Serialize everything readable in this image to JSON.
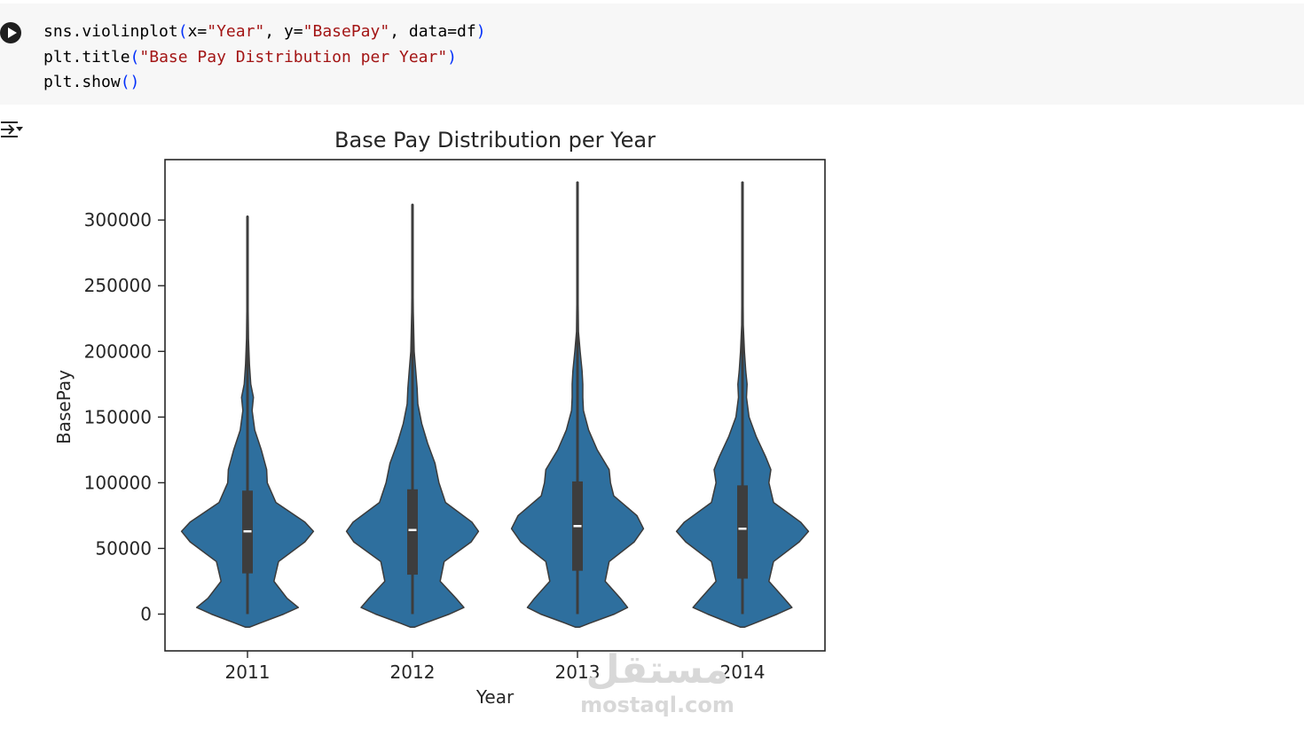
{
  "notebook": {
    "code_lines": [
      [
        {
          "t": "sns.violinplot",
          "c": ""
        },
        {
          "t": "(",
          "c": "p"
        },
        {
          "t": "x=",
          "c": ""
        },
        {
          "t": "\"Year\"",
          "c": "s"
        },
        {
          "t": ", y=",
          "c": ""
        },
        {
          "t": "\"BasePay\"",
          "c": "s"
        },
        {
          "t": ", data=df",
          "c": ""
        },
        {
          "t": ")",
          "c": "p"
        }
      ],
      [
        {
          "t": "plt.title",
          "c": ""
        },
        {
          "t": "(",
          "c": "p"
        },
        {
          "t": "\"Base Pay Distribution per Year\"",
          "c": "s"
        },
        {
          "t": ")",
          "c": "p"
        }
      ],
      [
        {
          "t": "plt.show",
          "c": ""
        },
        {
          "t": "()",
          "c": "p"
        }
      ]
    ],
    "run_icon": "play-circle-icon",
    "output_icon": "output-toggle-icon"
  },
  "chart_data": {
    "type": "violin",
    "title": "Base Pay Distribution per Year",
    "xlabel": "Year",
    "ylabel": "BasePay",
    "categories": [
      "2011",
      "2012",
      "2013",
      "2014"
    ],
    "ylim": [
      -28000,
      346000
    ],
    "yticks": [
      0,
      50000,
      100000,
      150000,
      200000,
      250000,
      300000
    ],
    "ytick_labels": [
      "0",
      "50000",
      "100000",
      "150000",
      "200000",
      "250000",
      "300000"
    ],
    "grid": false,
    "legend": "none",
    "colors": {
      "fill": "#2e6f9e",
      "edge": "#3b3b3b",
      "box": "#3d3d3d",
      "median": "#ffffff"
    },
    "violins": [
      {
        "year": "2011",
        "min": 0,
        "max": 303000,
        "q1": 31000,
        "median": 63000,
        "q3": 94000,
        "profile": [
          [
            -10000,
            0.03
          ],
          [
            -7000,
            0.18
          ],
          [
            0,
            0.55
          ],
          [
            5000,
            0.77
          ],
          [
            12000,
            0.6
          ],
          [
            25000,
            0.4
          ],
          [
            40000,
            0.47
          ],
          [
            55000,
            0.87
          ],
          [
            63000,
            1.0
          ],
          [
            70000,
            0.87
          ],
          [
            85000,
            0.43
          ],
          [
            100000,
            0.3
          ],
          [
            110000,
            0.29
          ],
          [
            125000,
            0.21
          ],
          [
            140000,
            0.11
          ],
          [
            155000,
            0.07
          ],
          [
            165000,
            0.09
          ],
          [
            175000,
            0.05
          ],
          [
            190000,
            0.03
          ],
          [
            210000,
            0.015
          ],
          [
            240000,
            0.008
          ],
          [
            270000,
            0.006
          ],
          [
            303000,
            0.005
          ]
        ]
      },
      {
        "year": "2012",
        "min": 0,
        "max": 312000,
        "q1": 30000,
        "median": 64000,
        "q3": 95000,
        "profile": [
          [
            -10000,
            0.03
          ],
          [
            -7000,
            0.18
          ],
          [
            0,
            0.56
          ],
          [
            5000,
            0.78
          ],
          [
            12000,
            0.66
          ],
          [
            25000,
            0.42
          ],
          [
            40000,
            0.48
          ],
          [
            55000,
            0.89
          ],
          [
            63000,
            1.0
          ],
          [
            70000,
            0.9
          ],
          [
            85000,
            0.5
          ],
          [
            100000,
            0.4
          ],
          [
            115000,
            0.34
          ],
          [
            130000,
            0.23
          ],
          [
            145000,
            0.14
          ],
          [
            160000,
            0.08
          ],
          [
            172000,
            0.07
          ],
          [
            185000,
            0.05
          ],
          [
            200000,
            0.025
          ],
          [
            230000,
            0.012
          ],
          [
            260000,
            0.007
          ],
          [
            290000,
            0.006
          ],
          [
            312000,
            0.005
          ]
        ]
      },
      {
        "year": "2013",
        "min": 0,
        "max": 329000,
        "q1": 33000,
        "median": 67000,
        "q3": 101000,
        "profile": [
          [
            -10000,
            0.03
          ],
          [
            -7000,
            0.18
          ],
          [
            0,
            0.56
          ],
          [
            5000,
            0.76
          ],
          [
            12000,
            0.65
          ],
          [
            25000,
            0.42
          ],
          [
            40000,
            0.48
          ],
          [
            55000,
            0.86
          ],
          [
            65000,
            1.0
          ],
          [
            75000,
            0.9
          ],
          [
            90000,
            0.55
          ],
          [
            100000,
            0.5
          ],
          [
            110000,
            0.48
          ],
          [
            125000,
            0.3
          ],
          [
            140000,
            0.17
          ],
          [
            155000,
            0.09
          ],
          [
            165000,
            0.08
          ],
          [
            175000,
            0.08
          ],
          [
            185000,
            0.07
          ],
          [
            200000,
            0.04
          ],
          [
            215000,
            0.015
          ],
          [
            245000,
            0.008
          ],
          [
            290000,
            0.006
          ],
          [
            329000,
            0.005
          ]
        ]
      },
      {
        "year": "2014",
        "min": 0,
        "max": 329000,
        "q1": 27000,
        "median": 65000,
        "q3": 98000,
        "profile": [
          [
            -10000,
            0.03
          ],
          [
            -7000,
            0.18
          ],
          [
            0,
            0.53
          ],
          [
            5000,
            0.75
          ],
          [
            12000,
            0.63
          ],
          [
            25000,
            0.4
          ],
          [
            40000,
            0.47
          ],
          [
            55000,
            0.86
          ],
          [
            63000,
            1.0
          ],
          [
            70000,
            0.88
          ],
          [
            85000,
            0.47
          ],
          [
            100000,
            0.4
          ],
          [
            110000,
            0.43
          ],
          [
            120000,
            0.35
          ],
          [
            135000,
            0.21
          ],
          [
            150000,
            0.1
          ],
          [
            165000,
            0.06
          ],
          [
            175000,
            0.07
          ],
          [
            185000,
            0.05
          ],
          [
            200000,
            0.03
          ],
          [
            220000,
            0.012
          ],
          [
            250000,
            0.008
          ],
          [
            290000,
            0.006
          ],
          [
            329000,
            0.005
          ]
        ]
      }
    ]
  },
  "watermark": {
    "arabic": "مستقل",
    "latin": "mostaql.com"
  }
}
